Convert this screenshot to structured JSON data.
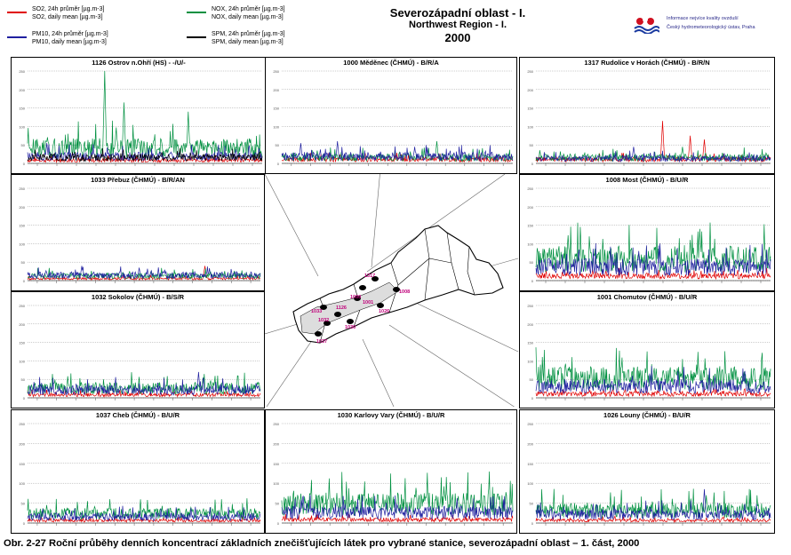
{
  "legend": [
    {
      "line1": "SO2, 24h průměr [µg.m-3]",
      "line2": "SO2, daily mean [µg.m-3]",
      "color": "#e00000"
    },
    {
      "line1": "NOX, 24h průměr [µg.m-3]",
      "line2": "NOX, daily mean [µg.m-3]",
      "color": "#009040"
    },
    {
      "line1": "PM10, 24h průměr [µg.m-3]",
      "line2": "PM10, daily mean [µg.m-3]",
      "color": "#2020a0"
    },
    {
      "line1": "SPM, 24h průměr [µg.m-3]",
      "line2": "SPM, daily mean [µg.m-3]",
      "color": "#000000"
    }
  ],
  "header": {
    "title_cz": "Severozápadní oblast - I.",
    "title_en": "Northwest Region - I.",
    "year": "2000",
    "institute_line1": "Informace nejvíce kvality ovzduší",
    "institute_line2": "Český hydrometeorologický ústav, Praha"
  },
  "colors": {
    "so2": "#e00000",
    "nox": "#009040",
    "pm10": "#2020a0",
    "spm": "#000000"
  },
  "chart_data": [
    {
      "type": "line",
      "title": "1126 Ostrov n.Ohří (HS)  -  -/U/-",
      "ylim": [
        0,
        250
      ],
      "yticks": [
        0,
        50,
        100,
        150,
        200,
        250
      ],
      "series": [
        {
          "name": "SO2",
          "level": 8,
          "peaks": []
        },
        {
          "name": "NOX",
          "level": 40,
          "peaks": [
            [
              120,
              250
            ],
            [
              150,
              165
            ],
            [
              250,
              140
            ]
          ]
        },
        {
          "name": "PM10",
          "level": 18,
          "peaks": [
            [
              30,
              55
            ]
          ]
        },
        {
          "name": "SPM",
          "level": 15,
          "peaks": []
        }
      ]
    },
    {
      "type": "line",
      "title": "1000 Měděnec (ČHMÚ)  -  B/R/A",
      "ylim": [
        0,
        250
      ],
      "yticks": [
        0,
        50,
        100,
        150,
        200,
        250
      ],
      "series": [
        {
          "name": "SO2",
          "level": 10,
          "peaks": []
        },
        {
          "name": "NOX",
          "level": 15,
          "peaks": [
            [
              245,
              60
            ]
          ]
        },
        {
          "name": "PM10",
          "level": 18,
          "peaks": [
            [
              30,
              55
            ],
            [
              88,
              60
            ],
            [
              210,
              45
            ]
          ]
        }
      ]
    },
    {
      "type": "line",
      "title": "1317 Rudolice v Horách (ČHMÚ)  -  B/R/N",
      "ylim": [
        0,
        250
      ],
      "yticks": [
        0,
        50,
        100,
        150,
        200,
        250
      ],
      "series": [
        {
          "name": "SO2",
          "level": 10,
          "peaks": [
            [
              197,
              115
            ],
            [
              240,
              75
            ],
            [
              262,
              65
            ]
          ]
        },
        {
          "name": "NOX",
          "level": 15,
          "peaks": [
            [
              228,
              45
            ]
          ]
        },
        {
          "name": "PM10",
          "level": 12,
          "peaks": [
            [
              152,
              45
            ]
          ]
        }
      ]
    },
    {
      "type": "line",
      "title": "1033 Přebuz (ČHMÚ)  -  B/R/AN",
      "ylim": [
        0,
        250
      ],
      "yticks": [
        0,
        50,
        100,
        150,
        200,
        250
      ],
      "series": [
        {
          "name": "SO2",
          "level": 5,
          "peaks": [
            [
              278,
              40
            ]
          ]
        },
        {
          "name": "NOX",
          "level": 12,
          "peaks": []
        },
        {
          "name": "PM10",
          "level": 14,
          "peaks": [
            [
              85,
              40
            ],
            [
              175,
              35
            ]
          ]
        }
      ]
    },
    {
      "type": "line",
      "title": "1008 Most (ČHMÚ)  -  B/U/R",
      "ylim": [
        0,
        250
      ],
      "yticks": [
        0,
        50,
        100,
        150,
        200,
        250
      ],
      "series": [
        {
          "name": "SO2",
          "level": 12,
          "peaks": []
        },
        {
          "name": "NOX",
          "level": 55,
          "peaks": [
            [
              255,
              140
            ],
            [
              240,
              110
            ]
          ]
        },
        {
          "name": "PM10",
          "level": 35,
          "peaks": [
            [
              160,
              80
            ]
          ]
        }
      ]
    },
    {
      "type": "line",
      "title": "1032 Sokolov (ČHMÚ)  -  B/S/R",
      "ylim": [
        0,
        250
      ],
      "yticks": [
        0,
        50,
        100,
        150,
        200,
        250
      ],
      "series": [
        {
          "name": "SO2",
          "level": 8,
          "peaks": []
        },
        {
          "name": "NOX",
          "level": 25,
          "peaks": [
            [
              275,
              55
            ]
          ]
        },
        {
          "name": "PM10",
          "level": 20,
          "peaks": [
            [
              268,
              70
            ]
          ]
        }
      ]
    },
    {
      "type": "line",
      "title": "1001 Chomutov (ČHMÚ)  -  B/U/R",
      "ylim": [
        0,
        250
      ],
      "yticks": [
        0,
        50,
        100,
        150,
        200,
        250
      ],
      "series": [
        {
          "name": "SO2",
          "level": 10,
          "peaks": []
        },
        {
          "name": "NOX",
          "level": 50,
          "peaks": [
            [
              250,
              90
            ],
            [
              220,
              80
            ]
          ]
        },
        {
          "name": "PM10",
          "level": 30,
          "peaks": [
            [
              150,
              60
            ]
          ]
        }
      ]
    },
    {
      "type": "line",
      "title": "1037 Cheb (ČHMÚ)  -  B/U/R",
      "ylim": [
        0,
        250
      ],
      "yticks": [
        0,
        50,
        100,
        150,
        200,
        250
      ],
      "series": [
        {
          "name": "SO2",
          "level": 6,
          "peaks": []
        },
        {
          "name": "NOX",
          "level": 22,
          "peaks": [
            [
              30,
              45
            ]
          ]
        },
        {
          "name": "PM10",
          "level": 15,
          "peaks": []
        }
      ]
    },
    {
      "type": "line",
      "title": "1030 Karlovy Vary (ČHMÚ)  -  B/U/R",
      "ylim": [
        0,
        250
      ],
      "yticks": [
        0,
        50,
        100,
        150,
        200,
        250
      ],
      "series": [
        {
          "name": "SO2",
          "level": 8,
          "peaks": []
        },
        {
          "name": "NOX",
          "level": 45,
          "peaks": [
            [
              225,
              75
            ]
          ]
        },
        {
          "name": "PM10",
          "level": 25,
          "peaks": []
        }
      ]
    },
    {
      "type": "line",
      "title": "1026 Louny (ČHMÚ)  -  B/U/R",
      "ylim": [
        0,
        250
      ],
      "yticks": [
        0,
        50,
        100,
        150,
        200,
        250
      ],
      "series": [
        {
          "name": "SO2",
          "level": 6,
          "peaks": []
        },
        {
          "name": "NOX",
          "level": 30,
          "peaks": [
            [
              265,
              70
            ]
          ]
        },
        {
          "name": "PM10",
          "level": 20,
          "peaks": [
            [
              262,
              85
            ]
          ]
        }
      ]
    }
  ],
  "map": {
    "labels": [
      "1317",
      "1000",
      "1008",
      "1001",
      "1033",
      "1126",
      "1032",
      "1030",
      "1037",
      "1026"
    ]
  },
  "caption": "Obr. 2-27  Roční průběhy denních koncentrací základních znečišťujících látek pro vybrané stanice, severozápadní oblast – 1. část, 2000"
}
